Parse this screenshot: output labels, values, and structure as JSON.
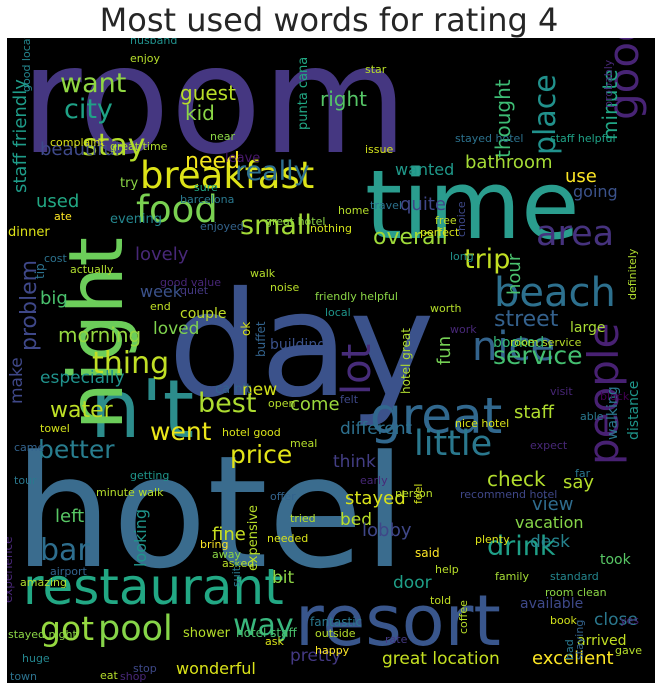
{
  "title": "Most used words for rating 4",
  "palette": "viridis",
  "background": "#000000",
  "words": [
    {
      "text": "room",
      "color": "#453781"
    },
    {
      "text": "hotel",
      "color": "#3a6c8e"
    },
    {
      "text": "day",
      "color": "#3b528b"
    },
    {
      "text": "time",
      "color": "#2a9d8e"
    },
    {
      "text": "resort",
      "color": "#39568c"
    },
    {
      "text": "n't",
      "color": "#2c8d8c"
    },
    {
      "text": "night",
      "color": "#6ccd5a"
    },
    {
      "text": "great",
      "color": "#31688e"
    },
    {
      "text": "breakfast",
      "color": "#dde318"
    },
    {
      "text": "restaurant",
      "color": "#22a884"
    },
    {
      "text": "beach",
      "color": "#2d708e"
    },
    {
      "text": "nice",
      "color": "#33638d"
    },
    {
      "text": "lot",
      "color": "#472c7a"
    },
    {
      "text": "food",
      "color": "#7ad151"
    },
    {
      "text": "good",
      "color": "#482475"
    },
    {
      "text": "people",
      "color": "#482173"
    },
    {
      "text": "little",
      "color": "#2a788e"
    },
    {
      "text": "area",
      "color": "#46327e"
    },
    {
      "text": "place",
      "color": "#21918c"
    },
    {
      "text": "stay",
      "color": "#b5de2b"
    },
    {
      "text": "really",
      "color": "#2e6f8e"
    },
    {
      "text": "want",
      "color": "#90d743"
    },
    {
      "text": "thing",
      "color": "#c0df25"
    },
    {
      "text": "best",
      "color": "#addc30"
    },
    {
      "text": "small",
      "color": "#a2da37"
    },
    {
      "text": "city",
      "color": "#1fa287"
    },
    {
      "text": "price",
      "color": "#e2e418"
    },
    {
      "text": "went",
      "color": "#eae51a"
    },
    {
      "text": "got",
      "color": "#95d840"
    },
    {
      "text": "pool",
      "color": "#86d549"
    },
    {
      "text": "way",
      "color": "#39b77e"
    },
    {
      "text": "service",
      "color": "#44bf70"
    },
    {
      "text": "trip",
      "color": "#c2df23"
    },
    {
      "text": "better",
      "color": "#287d8e"
    },
    {
      "text": "drink",
      "color": "#1fa088"
    },
    {
      "text": "bar",
      "color": "#2e6e8e"
    },
    {
      "text": "street",
      "color": "#34618d"
    },
    {
      "text": "problem",
      "color": "#3f4889"
    },
    {
      "text": "need",
      "color": "#f1e51d"
    },
    {
      "text": "overall",
      "color": "#9fda3a"
    },
    {
      "text": "water",
      "color": "#bddf26"
    },
    {
      "text": "guest",
      "color": "#b8de29"
    },
    {
      "text": "kid",
      "color": "#8bd646"
    },
    {
      "text": "right",
      "color": "#56c667"
    },
    {
      "text": "lovely",
      "color": "#482878"
    },
    {
      "text": "morning",
      "color": "#95d840"
    },
    {
      "text": "fun",
      "color": "#75d054"
    },
    {
      "text": "thought",
      "color": "#3dbc74"
    },
    {
      "text": "minute",
      "color": "#21a685"
    },
    {
      "text": "use",
      "color": "#fde725"
    },
    {
      "text": "bathroom",
      "color": "#a5db36"
    },
    {
      "text": "going",
      "color": "#3b528b"
    },
    {
      "text": "beautiful",
      "color": "#3e4989"
    },
    {
      "text": "staff friendly",
      "color": "#1e9c89"
    },
    {
      "text": "quite",
      "color": "#3f4788"
    },
    {
      "text": "used",
      "color": "#22a884"
    },
    {
      "text": "wanted",
      "color": "#1f998a"
    },
    {
      "text": "hour",
      "color": "#4ac16d"
    },
    {
      "text": "big",
      "color": "#4ac16d"
    },
    {
      "text": "week",
      "color": "#3b528b"
    },
    {
      "text": "loved",
      "color": "#7fd34e"
    },
    {
      "text": "make",
      "color": "#3f4889"
    },
    {
      "text": "especially",
      "color": "#20928c"
    },
    {
      "text": "come",
      "color": "#9bd93c"
    },
    {
      "text": "new",
      "color": "#d2e21b"
    },
    {
      "text": "different",
      "color": "#2d708e"
    },
    {
      "text": "think",
      "color": "#433e85"
    },
    {
      "text": "say",
      "color": "#b5de2b"
    },
    {
      "text": "check",
      "color": "#b2dd2d"
    },
    {
      "text": "staff",
      "color": "#b0dd2f"
    },
    {
      "text": "stayed",
      "color": "#d8e219"
    },
    {
      "text": "view",
      "color": "#2f6c8e"
    },
    {
      "text": "bed",
      "color": "#b8de29"
    },
    {
      "text": "lobby",
      "color": "#3f4788"
    },
    {
      "text": "fine",
      "color": "#c8e020"
    },
    {
      "text": "left",
      "color": "#58c765"
    },
    {
      "text": "looking",
      "color": "#1f958b"
    },
    {
      "text": "bit",
      "color": "#8ed645"
    },
    {
      "text": "vacation",
      "color": "#86d549"
    },
    {
      "text": "desk",
      "color": "#25848e"
    },
    {
      "text": "door",
      "color": "#1f9f88"
    },
    {
      "text": "close",
      "color": "#2a788e"
    },
    {
      "text": "excellent",
      "color": "#fde725"
    },
    {
      "text": "great location",
      "color": "#c5e021"
    },
    {
      "text": "pretty",
      "color": "#443983"
    },
    {
      "text": "wonderful",
      "color": "#dae319"
    },
    {
      "text": "large",
      "color": "#a8db34"
    },
    {
      "text": "building",
      "color": "#3b528b"
    },
    {
      "text": "couple",
      "color": "#c0df25"
    },
    {
      "text": "booked",
      "color": "#37b878"
    },
    {
      "text": "distance",
      "color": "#1f968b"
    },
    {
      "text": "walking",
      "color": "#2a788e"
    },
    {
      "text": "took",
      "color": "#58c765"
    },
    {
      "text": "available",
      "color": "#3e4989"
    },
    {
      "text": "experience",
      "color": "#482677"
    },
    {
      "text": "arrived",
      "color": "#c2df23"
    },
    {
      "text": "punta cana",
      "color": "#22a884"
    },
    {
      "text": "leave",
      "color": "#48186a"
    },
    {
      "text": "try",
      "color": "#8bd646"
    },
    {
      "text": "evening",
      "color": "#24868e"
    },
    {
      "text": "dinner",
      "color": "#dde318"
    },
    {
      "text": "tip",
      "color": "#2c728e"
    },
    {
      "text": "ca n't",
      "color": "#33628d"
    },
    {
      "text": "shower",
      "color": "#b5de2b"
    },
    {
      "text": "hotel staff",
      "color": "#4ac16d"
    },
    {
      "text": "stayed night",
      "color": "#8bd646"
    },
    {
      "text": "expensive",
      "color": "#b8de29"
    },
    {
      "text": "hotel great",
      "color": "#b0dd2f"
    },
    {
      "text": "fantastic",
      "color": "#2a788e"
    },
    {
      "text": "outside",
      "color": "#b5de2b"
    },
    {
      "text": "recommend hotel",
      "color": "#3f4788"
    },
    {
      "text": "room clean",
      "color": "#8bd646"
    },
    {
      "text": "family",
      "color": "#a5db36"
    },
    {
      "text": "told",
      "color": "#c2df23"
    },
    {
      "text": "plenty",
      "color": "#dde318"
    },
    {
      "text": "said",
      "color": "#fde725"
    },
    {
      "text": "help",
      "color": "#b8de29"
    },
    {
      "text": "standard",
      "color": "#24868e"
    },
    {
      "text": "far",
      "color": "#2a788e"
    },
    {
      "text": "expect",
      "color": "#482878"
    },
    {
      "text": "nice hotel",
      "color": "#d8e219"
    },
    {
      "text": "open",
      "color": "#b5de2b"
    },
    {
      "text": "felt",
      "color": "#3e4989"
    },
    {
      "text": "local",
      "color": "#1f958b"
    },
    {
      "text": "buffet",
      "color": "#33638d"
    },
    {
      "text": "ok",
      "color": "#d8e219"
    },
    {
      "text": "walk",
      "color": "#b5de2b"
    },
    {
      "text": "quiet",
      "color": "#443983"
    },
    {
      "text": "end",
      "color": "#c0df25"
    },
    {
      "text": "actually",
      "color": "#b0dd2f"
    },
    {
      "text": "cost",
      "color": "#2c728e"
    },
    {
      "text": "good value",
      "color": "#482677"
    },
    {
      "text": "noise",
      "color": "#b8de29"
    },
    {
      "text": "friendly helpful",
      "color": "#8bd646"
    },
    {
      "text": "enjoyed",
      "color": "#33638d"
    },
    {
      "text": "ate",
      "color": "#fde725"
    },
    {
      "text": "barcelona",
      "color": "#2a788e"
    },
    {
      "text": "sure",
      "color": "#22a884"
    },
    {
      "text": "home",
      "color": "#b5de2b"
    },
    {
      "text": "nothing",
      "color": "#d2e21b"
    },
    {
      "text": "great hotel",
      "color": "#8bd646"
    },
    {
      "text": "travel",
      "color": "#2c728e"
    },
    {
      "text": "free",
      "color": "#c0df25"
    },
    {
      "text": "perfect",
      "color": "#d8e219"
    },
    {
      "text": "choice",
      "color": "#3e4989"
    },
    {
      "text": "long",
      "color": "#21918c"
    },
    {
      "text": "definitely",
      "color": "#b0dd2f"
    },
    {
      "text": "worth",
      "color": "#b5de2b"
    },
    {
      "text": "work",
      "color": "#482878"
    },
    {
      "text": "room service",
      "color": "#b8de29"
    },
    {
      "text": "visit",
      "color": "#482677"
    },
    {
      "text": "block",
      "color": "#440154"
    },
    {
      "text": "able",
      "color": "#2a788e"
    },
    {
      "text": "husband",
      "color": "#21918c"
    },
    {
      "text": "enjoy",
      "color": "#b5de2b"
    },
    {
      "text": "good location",
      "color": "#24868e"
    },
    {
      "text": "complaint",
      "color": "#d8e219"
    },
    {
      "text": "great time",
      "color": "#b0dd2f"
    },
    {
      "text": "near",
      "color": "#8bd646"
    },
    {
      "text": "issue",
      "color": "#d2e21b"
    },
    {
      "text": "star",
      "color": "#b8de29"
    },
    {
      "text": "stayed hotel",
      "color": "#2c728e"
    },
    {
      "text": "staff helpful",
      "color": "#1fa287"
    },
    {
      "text": "probably",
      "color": "#482878"
    },
    {
      "text": "hotel good",
      "color": "#d8e219"
    },
    {
      "text": "meal",
      "color": "#b5de2b"
    },
    {
      "text": "towel",
      "color": "#d2e21b"
    },
    {
      "text": "came",
      "color": "#33638d"
    },
    {
      "text": "tour",
      "color": "#2a788e"
    },
    {
      "text": "getting",
      "color": "#1f958b"
    },
    {
      "text": "minute walk",
      "color": "#b5de2b"
    },
    {
      "text": "early",
      "color": "#482878"
    },
    {
      "text": "person",
      "color": "#b8de29"
    },
    {
      "text": "feel",
      "color": "#d2e21b"
    },
    {
      "text": "offer",
      "color": "#33638d"
    },
    {
      "text": "tried",
      "color": "#b5de2b"
    },
    {
      "text": "needed",
      "color": "#d8e219"
    },
    {
      "text": "bring",
      "color": "#fde725"
    },
    {
      "text": "away",
      "color": "#8bd646"
    },
    {
      "text": "asked",
      "color": "#b8de29"
    },
    {
      "text": "suite",
      "color": "#2a788e"
    },
    {
      "text": "airport",
      "color": "#33638d"
    },
    {
      "text": "amazing",
      "color": "#b0dd2f"
    },
    {
      "text": "huge",
      "color": "#24868e"
    },
    {
      "text": "town",
      "color": "#2c728e"
    },
    {
      "text": "shop",
      "color": "#482878"
    },
    {
      "text": "eat",
      "color": "#b5de2b"
    },
    {
      "text": "stop",
      "color": "#3e4989"
    },
    {
      "text": "ask",
      "color": "#d8e219"
    },
    {
      "text": "happy",
      "color": "#fde725"
    },
    {
      "text": "rate",
      "color": "#443983"
    },
    {
      "text": "coffee",
      "color": "#b8de29"
    },
    {
      "text": "book",
      "color": "#d2e21b"
    },
    {
      "text": "bad",
      "color": "#2a788e"
    },
    {
      "text": "staying",
      "color": "#33638d"
    },
    {
      "text": "gave",
      "color": "#b5de2b"
    },
    {
      "text": "yes",
      "color": "#482878"
    }
  ]
}
